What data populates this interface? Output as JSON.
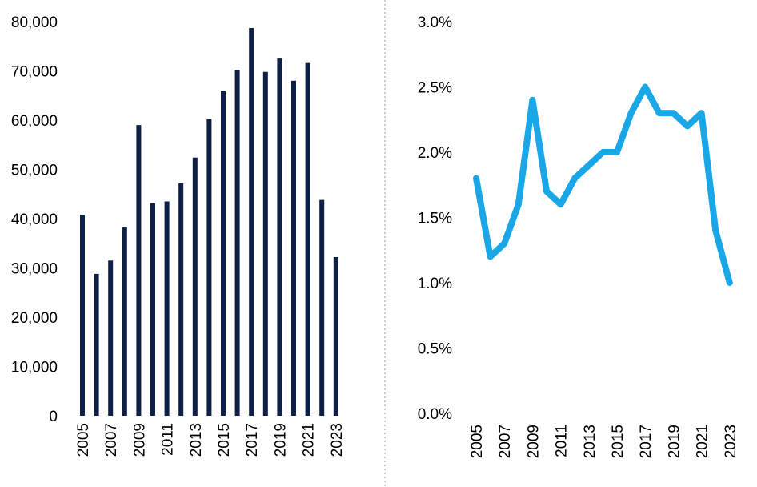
{
  "chart_data": [
    {
      "type": "bar",
      "categories": [
        "2005",
        "2006",
        "2007",
        "2008",
        "2009",
        "2010",
        "2011",
        "2012",
        "2013",
        "2014",
        "2015",
        "2016",
        "2017",
        "2018",
        "2019",
        "2020",
        "2021",
        "2022",
        "2023"
      ],
      "values": [
        40800,
        28800,
        31500,
        38200,
        59000,
        43100,
        43500,
        47200,
        52400,
        60200,
        66000,
        70200,
        78700,
        69800,
        72500,
        68000,
        71600,
        43800,
        32200
      ],
      "ylim": [
        0,
        80000
      ],
      "yticks": [
        0,
        10000,
        20000,
        30000,
        40000,
        50000,
        60000,
        70000,
        80000
      ],
      "ytick_labels": [
        "0",
        "10,000",
        "20,000",
        "30,000",
        "40,000",
        "50,000",
        "60,000",
        "70,000",
        "80,000"
      ],
      "xtick_labels": [
        "2005",
        "2007",
        "2009",
        "2011",
        "2013",
        "2015",
        "2017",
        "2019",
        "2021",
        "2023"
      ],
      "grid": false,
      "color": "#0d1f45"
    },
    {
      "type": "line",
      "x": [
        "2005",
        "2006",
        "2007",
        "2008",
        "2009",
        "2010",
        "2011",
        "2012",
        "2013",
        "2014",
        "2015",
        "2016",
        "2017",
        "2018",
        "2019",
        "2020",
        "2021",
        "2022",
        "2023"
      ],
      "values": [
        1.8,
        1.2,
        1.3,
        1.6,
        2.4,
        1.7,
        1.6,
        1.8,
        1.9,
        2.0,
        2.0,
        2.3,
        2.5,
        2.3,
        2.3,
        2.2,
        2.3,
        1.4,
        1.0
      ],
      "ylim": [
        0,
        3.0
      ],
      "yticks": [
        0,
        0.5,
        1.0,
        1.5,
        2.0,
        2.5,
        3.0
      ],
      "ytick_labels": [
        "0.0%",
        "0.5%",
        "1.0%",
        "1.5%",
        "2.0%",
        "2.5%",
        "3.0%"
      ],
      "xtick_labels": [
        "2005",
        "2007",
        "2009",
        "2011",
        "2013",
        "2015",
        "2017",
        "2019",
        "2021",
        "2023"
      ],
      "grid": false,
      "color": "#1aa7e8"
    }
  ],
  "divider": {
    "style": "dotted",
    "color": "#9a9a9a"
  }
}
